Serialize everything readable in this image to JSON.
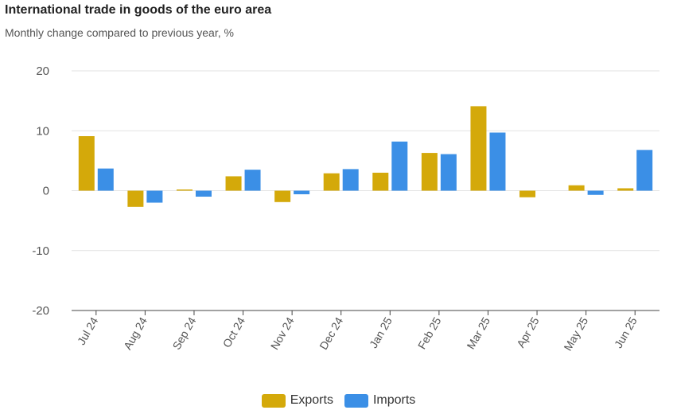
{
  "chart_data": {
    "type": "bar",
    "title": "International trade in goods of the euro area",
    "subtitle": "Monthly change compared to previous year, %",
    "categories": [
      "Jul 24",
      "Aug 24",
      "Sep 24",
      "Oct 24",
      "Nov 24",
      "Dec 24",
      "Jan 25",
      "Feb 25",
      "Mar 25",
      "Apr 25",
      "May 25",
      "Jun 25"
    ],
    "series": [
      {
        "name": "Exports",
        "color": "#d4a90a",
        "values": [
          9.1,
          -2.7,
          0.2,
          2.4,
          -1.9,
          2.9,
          3.0,
          6.3,
          14.1,
          -1.1,
          0.9,
          0.4
        ]
      },
      {
        "name": "Imports",
        "color": "#3b8fe6",
        "values": [
          3.7,
          -2.0,
          -1.0,
          3.5,
          -0.6,
          3.6,
          8.2,
          6.1,
          9.7,
          0.0,
          -0.7,
          6.8
        ]
      }
    ],
    "ylim": [
      -20,
      20
    ],
    "yticks": [
      20,
      10,
      0,
      -10,
      -20
    ],
    "xlabel": "",
    "ylabel": "",
    "grid": true,
    "legend": "bottom-center"
  }
}
